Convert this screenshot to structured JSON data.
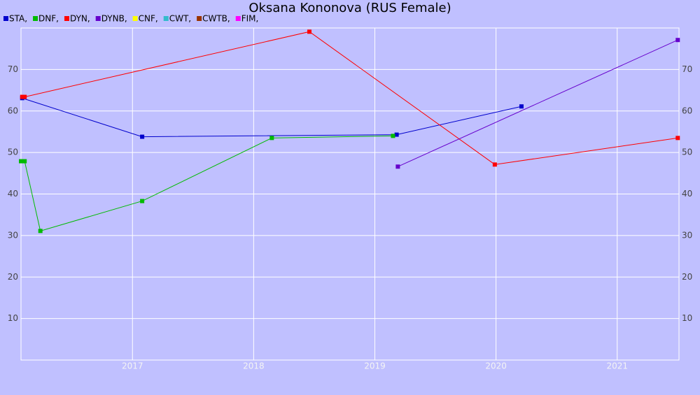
{
  "chart_data": {
    "type": "line",
    "title": "Oksana Kononova (RUS Female)",
    "xlim": [
      2016.08,
      2021.51
    ],
    "xticks": [
      2017,
      2018,
      2019,
      2020,
      2021
    ],
    "ylim": [
      0,
      80
    ],
    "yticks": [
      10,
      20,
      30,
      40,
      50,
      60,
      70
    ],
    "grid": true,
    "series": [
      {
        "name": "STA,",
        "color": "#0000cc",
        "x": [
          2016.09,
          2017.08,
          2019.18,
          2020.21
        ],
        "values": [
          63.1,
          53.8,
          54.3,
          61.1
        ]
      },
      {
        "name": "DNF,",
        "color": "#00bb00",
        "x": [
          2016.08,
          2016.11,
          2016.24,
          2017.08,
          2018.15,
          2019.15
        ],
        "values": [
          47.9,
          47.9,
          31.1,
          38.3,
          53.5,
          54.0
        ]
      },
      {
        "name": "DYN,",
        "color": "#ff0000",
        "x": [
          2016.09,
          2016.11,
          2018.46,
          2019.99,
          2021.5
        ],
        "values": [
          63.4,
          63.4,
          79.1,
          47.1,
          53.5
        ]
      },
      {
        "name": "DYNB,",
        "color": "#6600cc",
        "x": [
          2019.19,
          2021.5
        ],
        "values": [
          46.6,
          77.1
        ]
      },
      {
        "name": "CNF,",
        "color": "#ffff00",
        "x": [],
        "values": []
      },
      {
        "name": "CWT,",
        "color": "#33bbcc",
        "x": [],
        "values": []
      },
      {
        "name": "CWTB,",
        "color": "#993300",
        "x": [],
        "values": []
      },
      {
        "name": "FIM,",
        "color": "#ff00ff",
        "x": [],
        "values": []
      }
    ]
  }
}
